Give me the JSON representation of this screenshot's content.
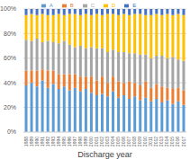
{
  "chart_data": {
    "type": "bar",
    "stacked": true,
    "x_label": "Discharge year",
    "legend": "top",
    "grid": true,
    "categories": [
      "1988",
      "1989",
      "1990",
      "1991",
      "1992",
      "1993",
      "1994",
      "1995",
      "1996",
      "1997",
      "1998",
      "1999",
      "2000",
      "2001",
      "2002",
      "2003",
      "2004",
      "2005",
      "2006",
      "2007",
      "2008",
      "2009",
      "2010",
      "2011",
      "2012",
      "2013",
      "2014",
      "2015",
      "2016",
      "2017"
    ],
    "ylim": [
      0,
      100
    ],
    "yticks": [
      {
        "value": 0,
        "label": "0%"
      },
      {
        "value": 20,
        "label": "20%"
      },
      {
        "value": 40,
        "label": "40%"
      },
      {
        "value": 60,
        "label": "60%"
      },
      {
        "value": 80,
        "label": "80%"
      },
      {
        "value": 100,
        "label": "100%"
      }
    ],
    "series": [
      {
        "name": "A",
        "color": "#5b9bd5",
        "values": [
          38,
          40,
          37,
          42,
          36,
          39,
          35,
          37,
          34,
          36,
          33,
          35,
          32,
          30,
          31,
          29,
          33,
          28,
          30,
          27,
          29,
          26,
          28,
          25,
          27,
          24,
          26,
          23,
          25,
          22
        ]
      },
      {
        "name": "B",
        "color": "#ed7d31",
        "values": [
          12,
          10,
          13,
          9,
          14,
          11,
          12,
          10,
          13,
          11,
          12,
          10,
          13,
          12,
          14,
          11,
          12,
          13,
          10,
          14,
          11,
          12,
          13,
          11,
          12,
          13,
          10,
          12,
          11,
          12
        ]
      },
      {
        "name": "C",
        "color": "#a5a5a5",
        "values": [
          25,
          24,
          26,
          22,
          24,
          23,
          25,
          27,
          24,
          22,
          25,
          23,
          24,
          26,
          23,
          25,
          22,
          24,
          25,
          23,
          24,
          25,
          22,
          24,
          23,
          25,
          24,
          26,
          23,
          24
        ]
      },
      {
        "name": "D",
        "color": "#ffc000",
        "values": [
          20,
          22,
          19,
          23,
          21,
          22,
          24,
          21,
          25,
          27,
          25,
          28,
          26,
          28,
          27,
          31,
          29,
          30,
          31,
          31,
          32,
          33,
          32,
          35,
          34,
          33,
          36,
          34,
          37,
          37
        ]
      },
      {
        "name": "E",
        "color": "#4472c4",
        "values": [
          5,
          4,
          5,
          4,
          5,
          5,
          4,
          5,
          4,
          4,
          5,
          4,
          5,
          4,
          5,
          4,
          4,
          5,
          4,
          5,
          4,
          4,
          5,
          5,
          4,
          5,
          4,
          5,
          4,
          5
        ]
      }
    ]
  }
}
